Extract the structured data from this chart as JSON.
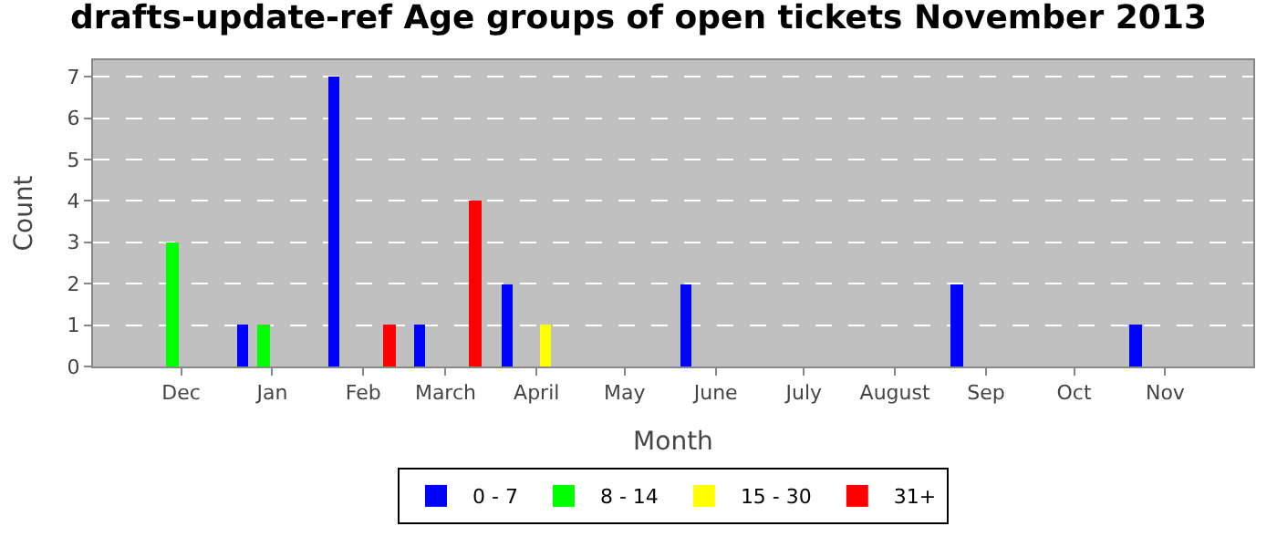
{
  "chart_data": {
    "type": "bar",
    "title": "drafts-update-ref Age groups of open tickets November 2013",
    "xlabel": "Month",
    "ylabel": "Count",
    "series": [
      {
        "name": "0 - 7",
        "color": "#0000ff",
        "x": [
          "2012-12-22",
          "2013-01-22",
          "2013-02-20",
          "2013-03-22",
          "2013-05-22",
          "2013-08-22",
          "2013-10-22"
        ],
        "values": [
          1,
          7,
          1,
          2,
          2,
          2,
          1
        ]
      },
      {
        "name": "8 - 14",
        "color": "#00ff00",
        "x": [
          "2012-11-28",
          "2012-12-29"
        ],
        "values": [
          3,
          1
        ]
      },
      {
        "name": "15 - 30",
        "color": "#ffff00",
        "x": [
          "2013-04-04"
        ],
        "values": [
          1
        ]
      },
      {
        "name": "31+",
        "color": "#ff0000",
        "x": [
          "2013-02-10",
          "2013-03-11"
        ],
        "values": [
          1,
          4
        ]
      }
    ],
    "xlim": [
      "2012-11-01",
      "2013-12-01"
    ],
    "xticks": [
      {
        "value": "2012-12-01",
        "label": "Dec"
      },
      {
        "value": "2013-01-01",
        "label": "Jan"
      },
      {
        "value": "2013-02-01",
        "label": "Feb"
      },
      {
        "value": "2013-03-01",
        "label": "March"
      },
      {
        "value": "2013-04-01",
        "label": "April"
      },
      {
        "value": "2013-05-01",
        "label": "May"
      },
      {
        "value": "2013-06-01",
        "label": "June"
      },
      {
        "value": "2013-07-01",
        "label": "July"
      },
      {
        "value": "2013-08-01",
        "label": "August"
      },
      {
        "value": "2013-09-01",
        "label": "Sep"
      },
      {
        "value": "2013-10-01",
        "label": "Oct"
      },
      {
        "value": "2013-11-01",
        "label": "Nov"
      }
    ],
    "ylim": [
      0,
      7.4
    ],
    "yticks": [
      0,
      1,
      2,
      3,
      4,
      5,
      6,
      7
    ],
    "grid": "y",
    "legend": "bottom"
  }
}
